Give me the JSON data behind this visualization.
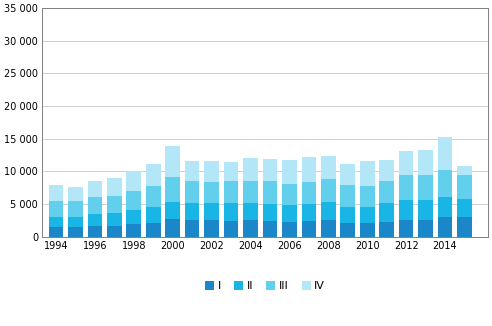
{
  "years": [
    1994,
    1995,
    1996,
    1997,
    1998,
    1999,
    2000,
    2001,
    2002,
    2003,
    2004,
    2005,
    2006,
    2007,
    2008,
    2009,
    2010,
    2011,
    2012,
    2013,
    2014,
    2015
  ],
  "Q1": [
    1500,
    1500,
    1700,
    1700,
    1900,
    2100,
    2700,
    2500,
    2500,
    2400,
    2500,
    2400,
    2300,
    2400,
    2500,
    2100,
    2100,
    2300,
    2600,
    2600,
    3000,
    3000
  ],
  "Q2": [
    1600,
    1600,
    1800,
    1900,
    2200,
    2500,
    2700,
    2600,
    2600,
    2700,
    2600,
    2600,
    2500,
    2600,
    2800,
    2500,
    2500,
    2800,
    3000,
    3000,
    3100,
    2800
  ],
  "Q3": [
    2400,
    2400,
    2600,
    2700,
    2900,
    3200,
    3800,
    3400,
    3300,
    3400,
    3500,
    3500,
    3300,
    3400,
    3600,
    3400,
    3200,
    3500,
    3900,
    3900,
    4200,
    3700
  ],
  "Q4": [
    2500,
    2200,
    2500,
    2700,
    3000,
    3400,
    4700,
    3100,
    3200,
    2900,
    3400,
    3400,
    3600,
    3800,
    3500,
    3100,
    3800,
    3200,
    3600,
    3800,
    5000,
    1300
  ],
  "colors": [
    "#1b86c8",
    "#19b5e5",
    "#62d0ed",
    "#b3e6f7"
  ],
  "legend_labels": [
    "I",
    "II",
    "III",
    "IV"
  ],
  "ylim": [
    0,
    35000
  ],
  "yticks": [
    0,
    5000,
    10000,
    15000,
    20000,
    25000,
    30000,
    35000
  ],
  "ytick_labels": [
    "0",
    "5 000",
    "10 000",
    "15 000",
    "20 000",
    "25 000",
    "30 000",
    "35 000"
  ],
  "xticks": [
    1994,
    1996,
    1998,
    2000,
    2002,
    2004,
    2006,
    2008,
    2010,
    2012,
    2014
  ],
  "xlim": [
    1993.3,
    2016.2
  ],
  "bar_width": 0.75,
  "background_color": "#ffffff",
  "spine_color": "#808080",
  "grid_color": "#c8c8c8"
}
